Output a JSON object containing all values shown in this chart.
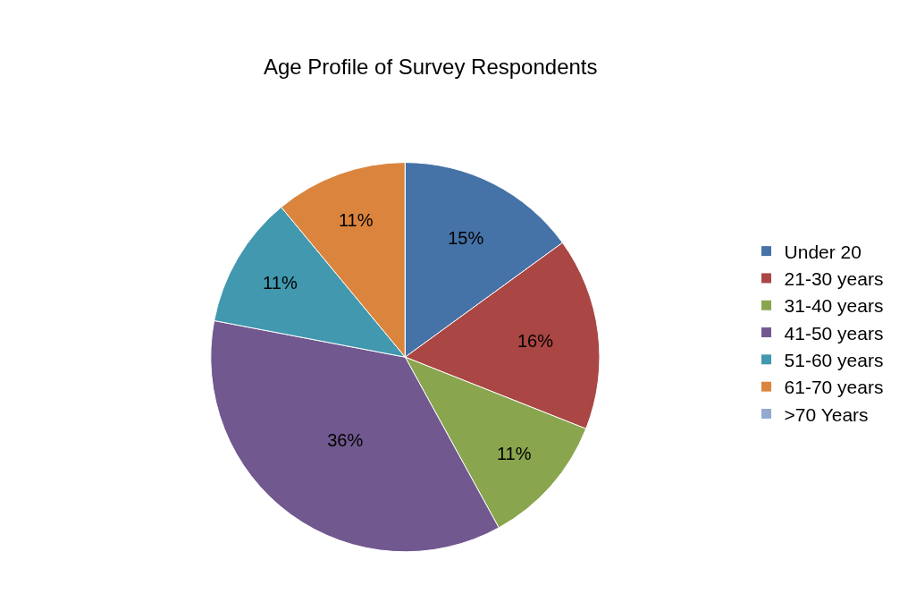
{
  "chart_data": {
    "type": "pie",
    "title": "Age Profile of Survey Respondents",
    "categories": [
      "Under 20",
      "21-30 years",
      "31-40 years",
      "41-50 years",
      "51-60 years",
      "61-70 years",
      ">70 Years"
    ],
    "values": [
      15,
      16,
      11,
      36,
      11,
      11,
      0
    ],
    "value_labels": [
      "15%",
      "16%",
      "11%",
      "36%",
      "11%",
      "11%",
      null
    ],
    "colors": [
      "#4572a7",
      "#aa4643",
      "#89a54e",
      "#71588f",
      "#4198af",
      "#db843d",
      "#93a9cf"
    ],
    "legend": "right"
  }
}
